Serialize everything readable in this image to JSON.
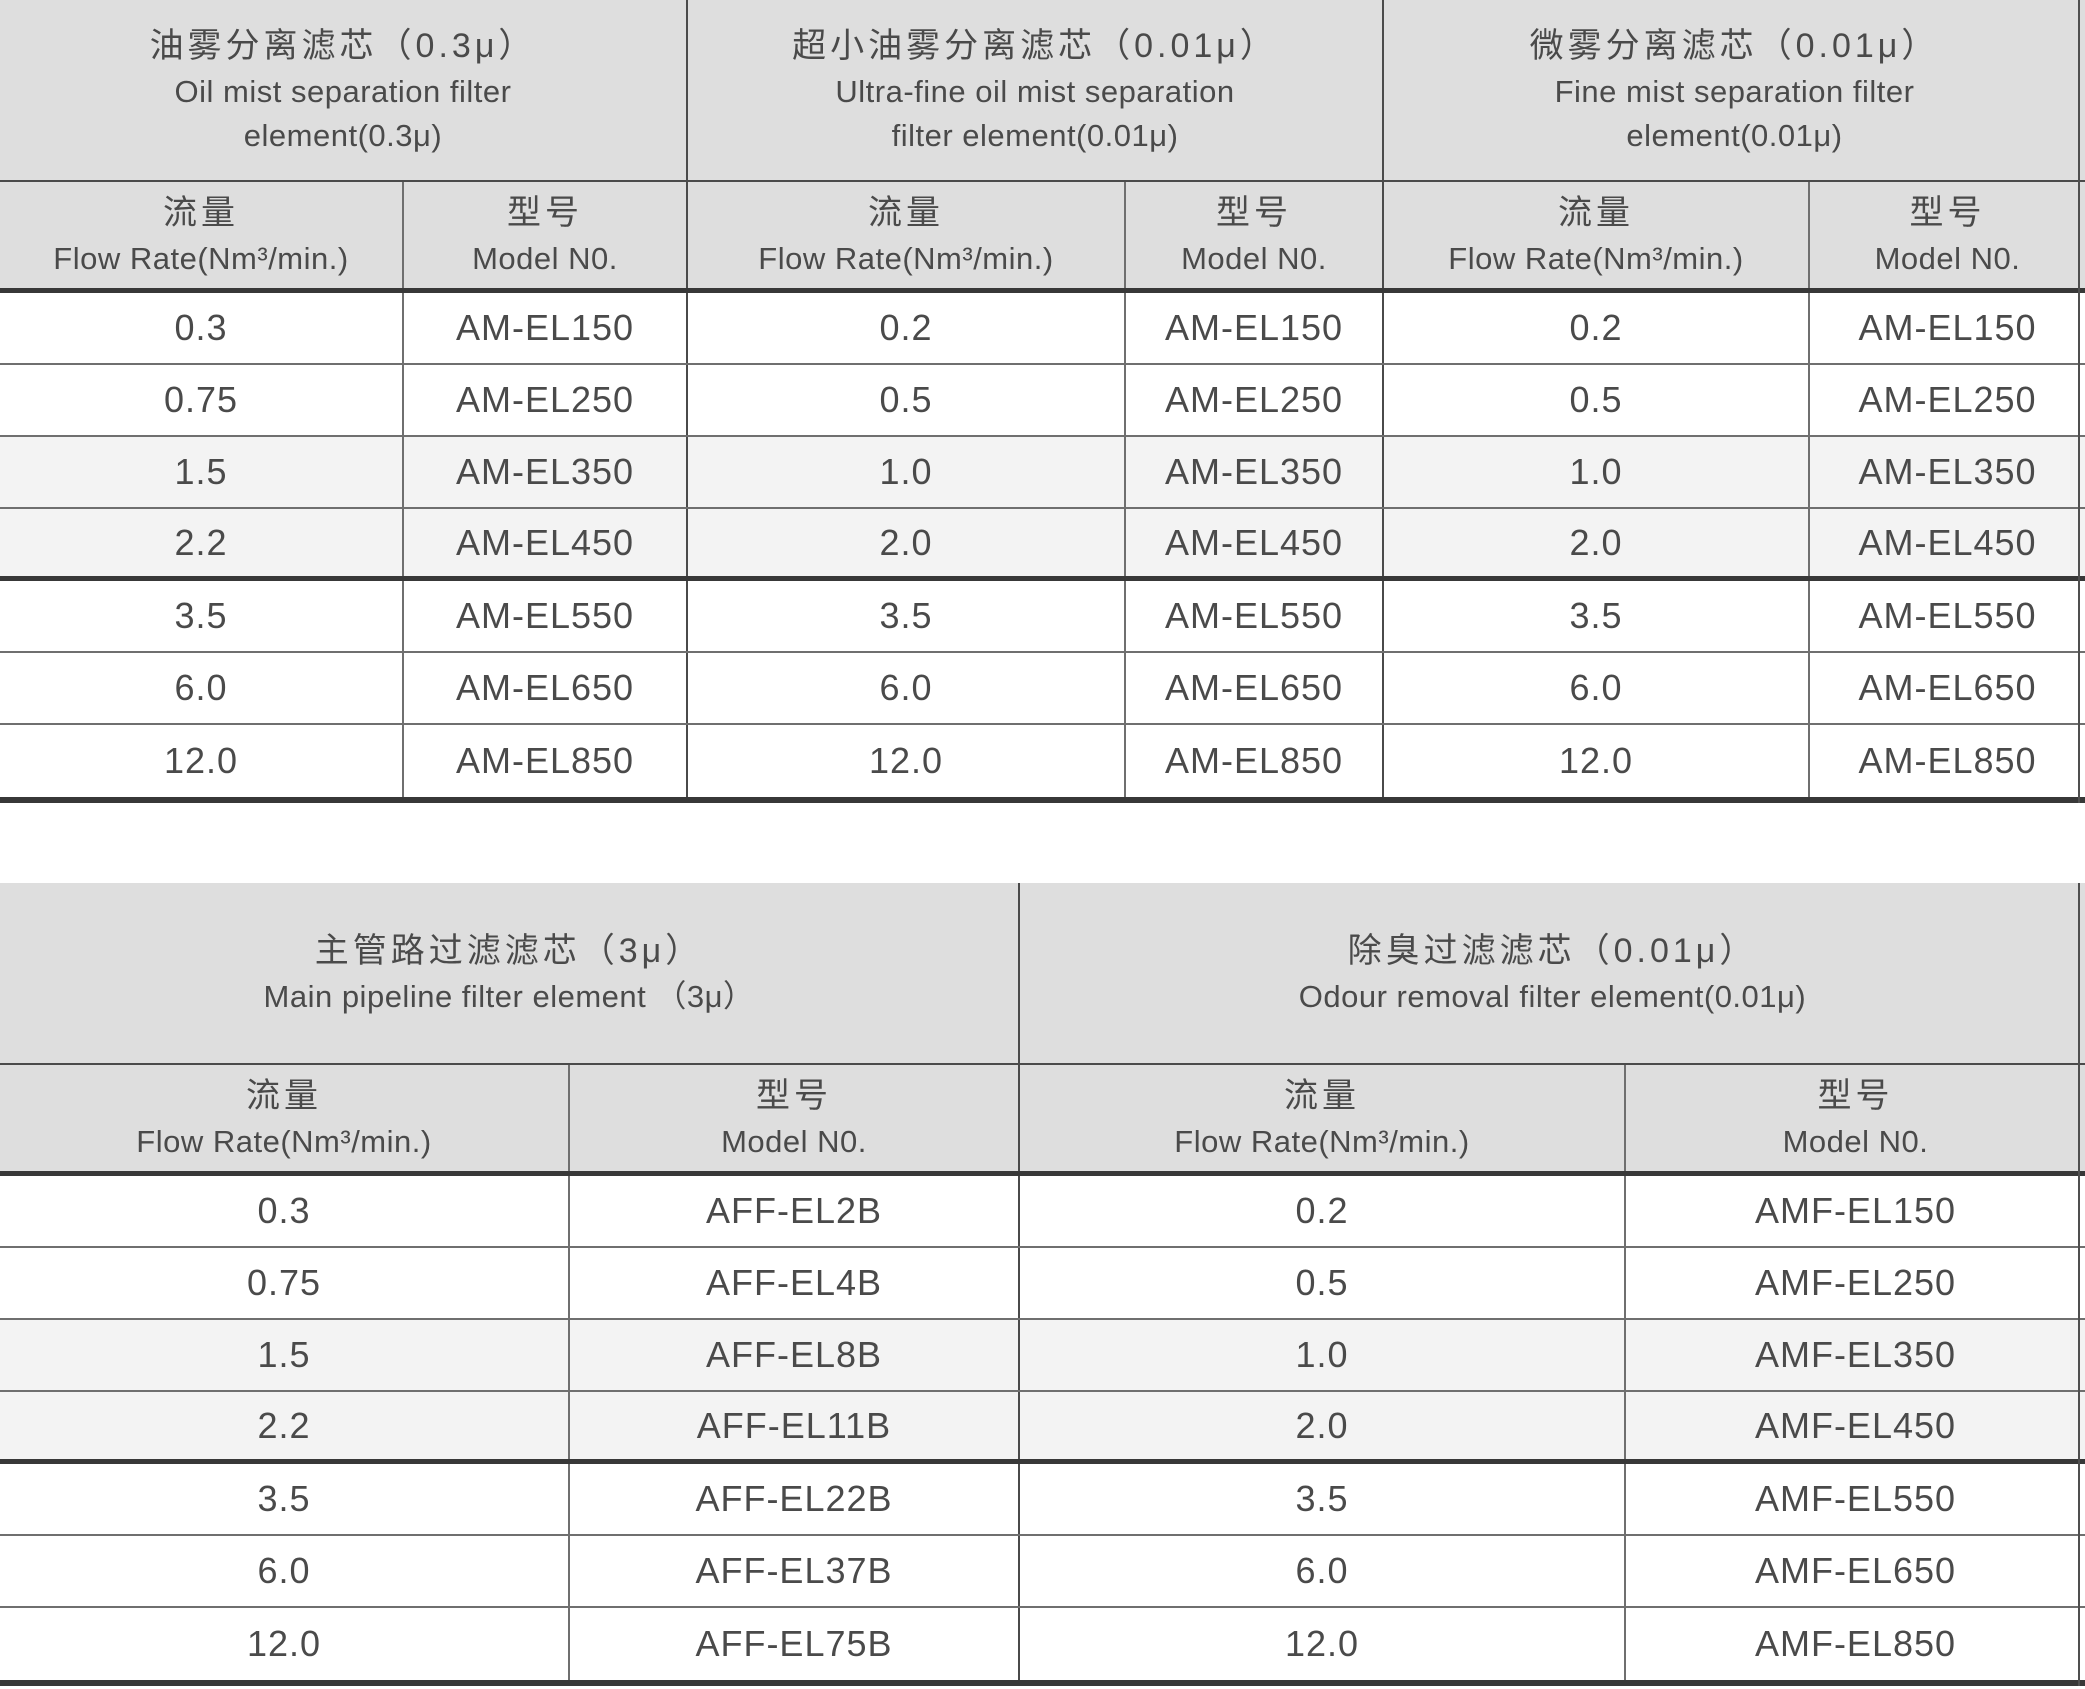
{
  "colors": {
    "header_bg": "#dedede",
    "shaded_row_bg": "#f3f3f3",
    "line_dark": "#383838",
    "line_light": "#6f6f6f",
    "text": "#4a4a4a"
  },
  "tables": [
    {
      "name": "mist-separation-filter-elements",
      "groups": [
        {
          "title_zh": "油雾分离滤芯（0.3μ）",
          "title_en_lines": [
            "Oil mist separation filter",
            "element(0.3μ)"
          ]
        },
        {
          "title_zh": "超小油雾分离滤芯（0.01μ）",
          "title_en_lines": [
            "Ultra-fine oil mist separation",
            "filter element(0.01μ)"
          ]
        },
        {
          "title_zh": "微雾分离滤芯（0.01μ）",
          "title_en_lines": [
            "Fine mist separation filter",
            "element(0.01μ)"
          ]
        }
      ],
      "column_headers": {
        "flow_zh": "流量",
        "flow_en": "Flow Rate(Nm³/min.)",
        "model_zh": "型号",
        "model_en": "Model N0."
      },
      "rows": [
        {
          "cells": [
            "0.3",
            "AM-EL150",
            "0.2",
            "AM-EL150",
            "0.2",
            "AM-EL150"
          ],
          "shaded": false
        },
        {
          "cells": [
            "0.75",
            "AM-EL250",
            "0.5",
            "AM-EL250",
            "0.5",
            "AM-EL250"
          ],
          "shaded": false
        },
        {
          "cells": [
            "1.5",
            "AM-EL350",
            "1.0",
            "AM-EL350",
            "1.0",
            "AM-EL350"
          ],
          "shaded": true
        },
        {
          "cells": [
            "2.2",
            "AM-EL450",
            "2.0",
            "AM-EL450",
            "2.0",
            "AM-EL450"
          ],
          "shaded": true
        },
        {
          "cells": [
            "3.5",
            "AM-EL550",
            "3.5",
            "AM-EL550",
            "3.5",
            "AM-EL550"
          ],
          "shaded": false
        },
        {
          "cells": [
            "6.0",
            "AM-EL650",
            "6.0",
            "AM-EL650",
            "6.0",
            "AM-EL650"
          ],
          "shaded": false
        },
        {
          "cells": [
            "12.0",
            "AM-EL850",
            "12.0",
            "AM-EL850",
            "12.0",
            "AM-EL850"
          ],
          "shaded": false
        }
      ]
    },
    {
      "name": "pipeline-and-odour-filter-elements",
      "groups": [
        {
          "title_zh": "主管路过滤滤芯（3μ）",
          "title_en_lines": [
            "Main pipeline filter element （3μ）"
          ]
        },
        {
          "title_zh": "除臭过滤滤芯（0.01μ）",
          "title_en_lines": [
            "Odour removal filter element(0.01μ)"
          ]
        }
      ],
      "column_headers": {
        "flow_zh": "流量",
        "flow_en": "Flow Rate(Nm³/min.)",
        "model_zh": "型号",
        "model_en": "Model N0."
      },
      "rows": [
        {
          "cells": [
            "0.3",
            "AFF-EL2B",
            "0.2",
            "AMF-EL150"
          ],
          "shaded": false
        },
        {
          "cells": [
            "0.75",
            "AFF-EL4B",
            "0.5",
            "AMF-EL250"
          ],
          "shaded": false
        },
        {
          "cells": [
            "1.5",
            "AFF-EL8B",
            "1.0",
            "AMF-EL350"
          ],
          "shaded": true
        },
        {
          "cells": [
            "2.2",
            "AFF-EL11B",
            "2.0",
            "AMF-EL450"
          ],
          "shaded": true
        },
        {
          "cells": [
            "3.5",
            "AFF-EL22B",
            "3.5",
            "AMF-EL550"
          ],
          "shaded": false
        },
        {
          "cells": [
            "6.0",
            "AFF-EL37B",
            "6.0",
            "AMF-EL650"
          ],
          "shaded": false
        },
        {
          "cells": [
            "12.0",
            "AFF-EL75B",
            "12.0",
            "AMF-EL850"
          ],
          "shaded": false
        }
      ]
    }
  ]
}
